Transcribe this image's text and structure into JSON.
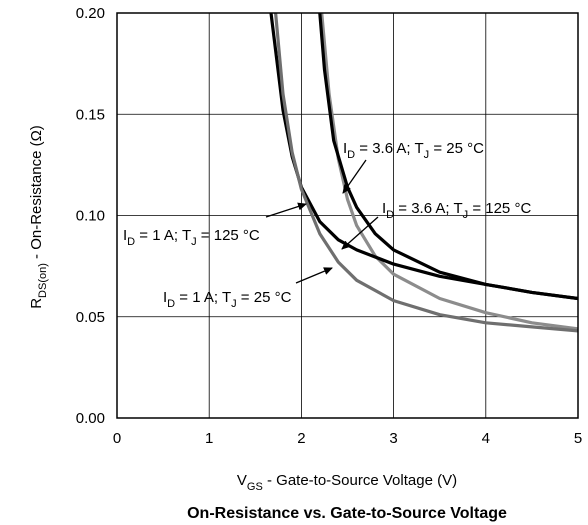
{
  "chart_data": {
    "type": "line",
    "title": "On-Resistance vs. Gate-to-Source Voltage",
    "xlabel": {
      "main": "V",
      "sub": "GS",
      "rest": " - Gate-to-Source Voltage (V)"
    },
    "ylabel": {
      "main": "R",
      "sub": "DS(on)",
      "rest": " - On-Resistance (Ω)"
    },
    "xlim": [
      0,
      5
    ],
    "ylim": [
      0,
      0.2
    ],
    "x_ticks": [
      "0",
      "1",
      "2",
      "3",
      "4",
      "5"
    ],
    "y_ticks": [
      "0.00",
      "0.05",
      "0.10",
      "0.15",
      "0.20"
    ],
    "grid": true,
    "series": [
      {
        "name": "ID = 3.6 A; TJ = 25 °C",
        "label": {
          "p1": "I",
          "s1": "D",
          "p2": " = 3.6 A; T",
          "s2": "J",
          "p3": " = 25 °C"
        },
        "color": "#8c8c8c",
        "x": [
          2.22,
          2.3,
          2.4,
          2.5,
          2.6,
          2.8,
          3.0,
          3.5,
          4.0,
          4.5,
          5.0
        ],
        "y": [
          0.2,
          0.16,
          0.128,
          0.108,
          0.095,
          0.08,
          0.071,
          0.059,
          0.052,
          0.047,
          0.044
        ]
      },
      {
        "name": "ID = 3.6 A; TJ = 125 °C",
        "label": {
          "p1": "I",
          "s1": "D",
          "p2": " = 3.6 A; T",
          "s2": "J",
          "p3": " = 125 °C"
        },
        "color": "#000000",
        "x": [
          2.2,
          2.25,
          2.35,
          2.5,
          2.6,
          2.8,
          3.0,
          3.5,
          4.0,
          4.5,
          5.0
        ],
        "y": [
          0.2,
          0.172,
          0.137,
          0.114,
          0.104,
          0.091,
          0.083,
          0.072,
          0.066,
          0.062,
          0.059
        ]
      },
      {
        "name": "ID = 1 A; TJ = 125 °C",
        "label": {
          "p1": "I",
          "s1": "D",
          "p2": " = 1 A; T",
          "s2": "J",
          "p3": " = 125 °C"
        },
        "color": "#000000",
        "x": [
          1.67,
          1.8,
          1.9,
          2.0,
          2.2,
          2.4,
          2.6,
          3.0,
          3.5,
          4.0,
          4.5,
          5.0
        ],
        "y": [
          0.2,
          0.152,
          0.129,
          0.114,
          0.097,
          0.088,
          0.083,
          0.076,
          0.07,
          0.066,
          0.062,
          0.059
        ]
      },
      {
        "name": "ID = 1 A; TJ = 25 °C",
        "label": {
          "p1": "I",
          "s1": "D",
          "p2": " = 1 A; T",
          "s2": "J",
          "p3": " = 25 °C"
        },
        "color": "#6f6f6f",
        "x": [
          1.72,
          1.8,
          1.9,
          2.0,
          2.2,
          2.4,
          2.6,
          3.0,
          3.5,
          4.0,
          4.5,
          5.0
        ],
        "y": [
          0.2,
          0.16,
          0.131,
          0.113,
          0.091,
          0.077,
          0.068,
          0.058,
          0.051,
          0.047,
          0.045,
          0.043
        ]
      }
    ]
  }
}
